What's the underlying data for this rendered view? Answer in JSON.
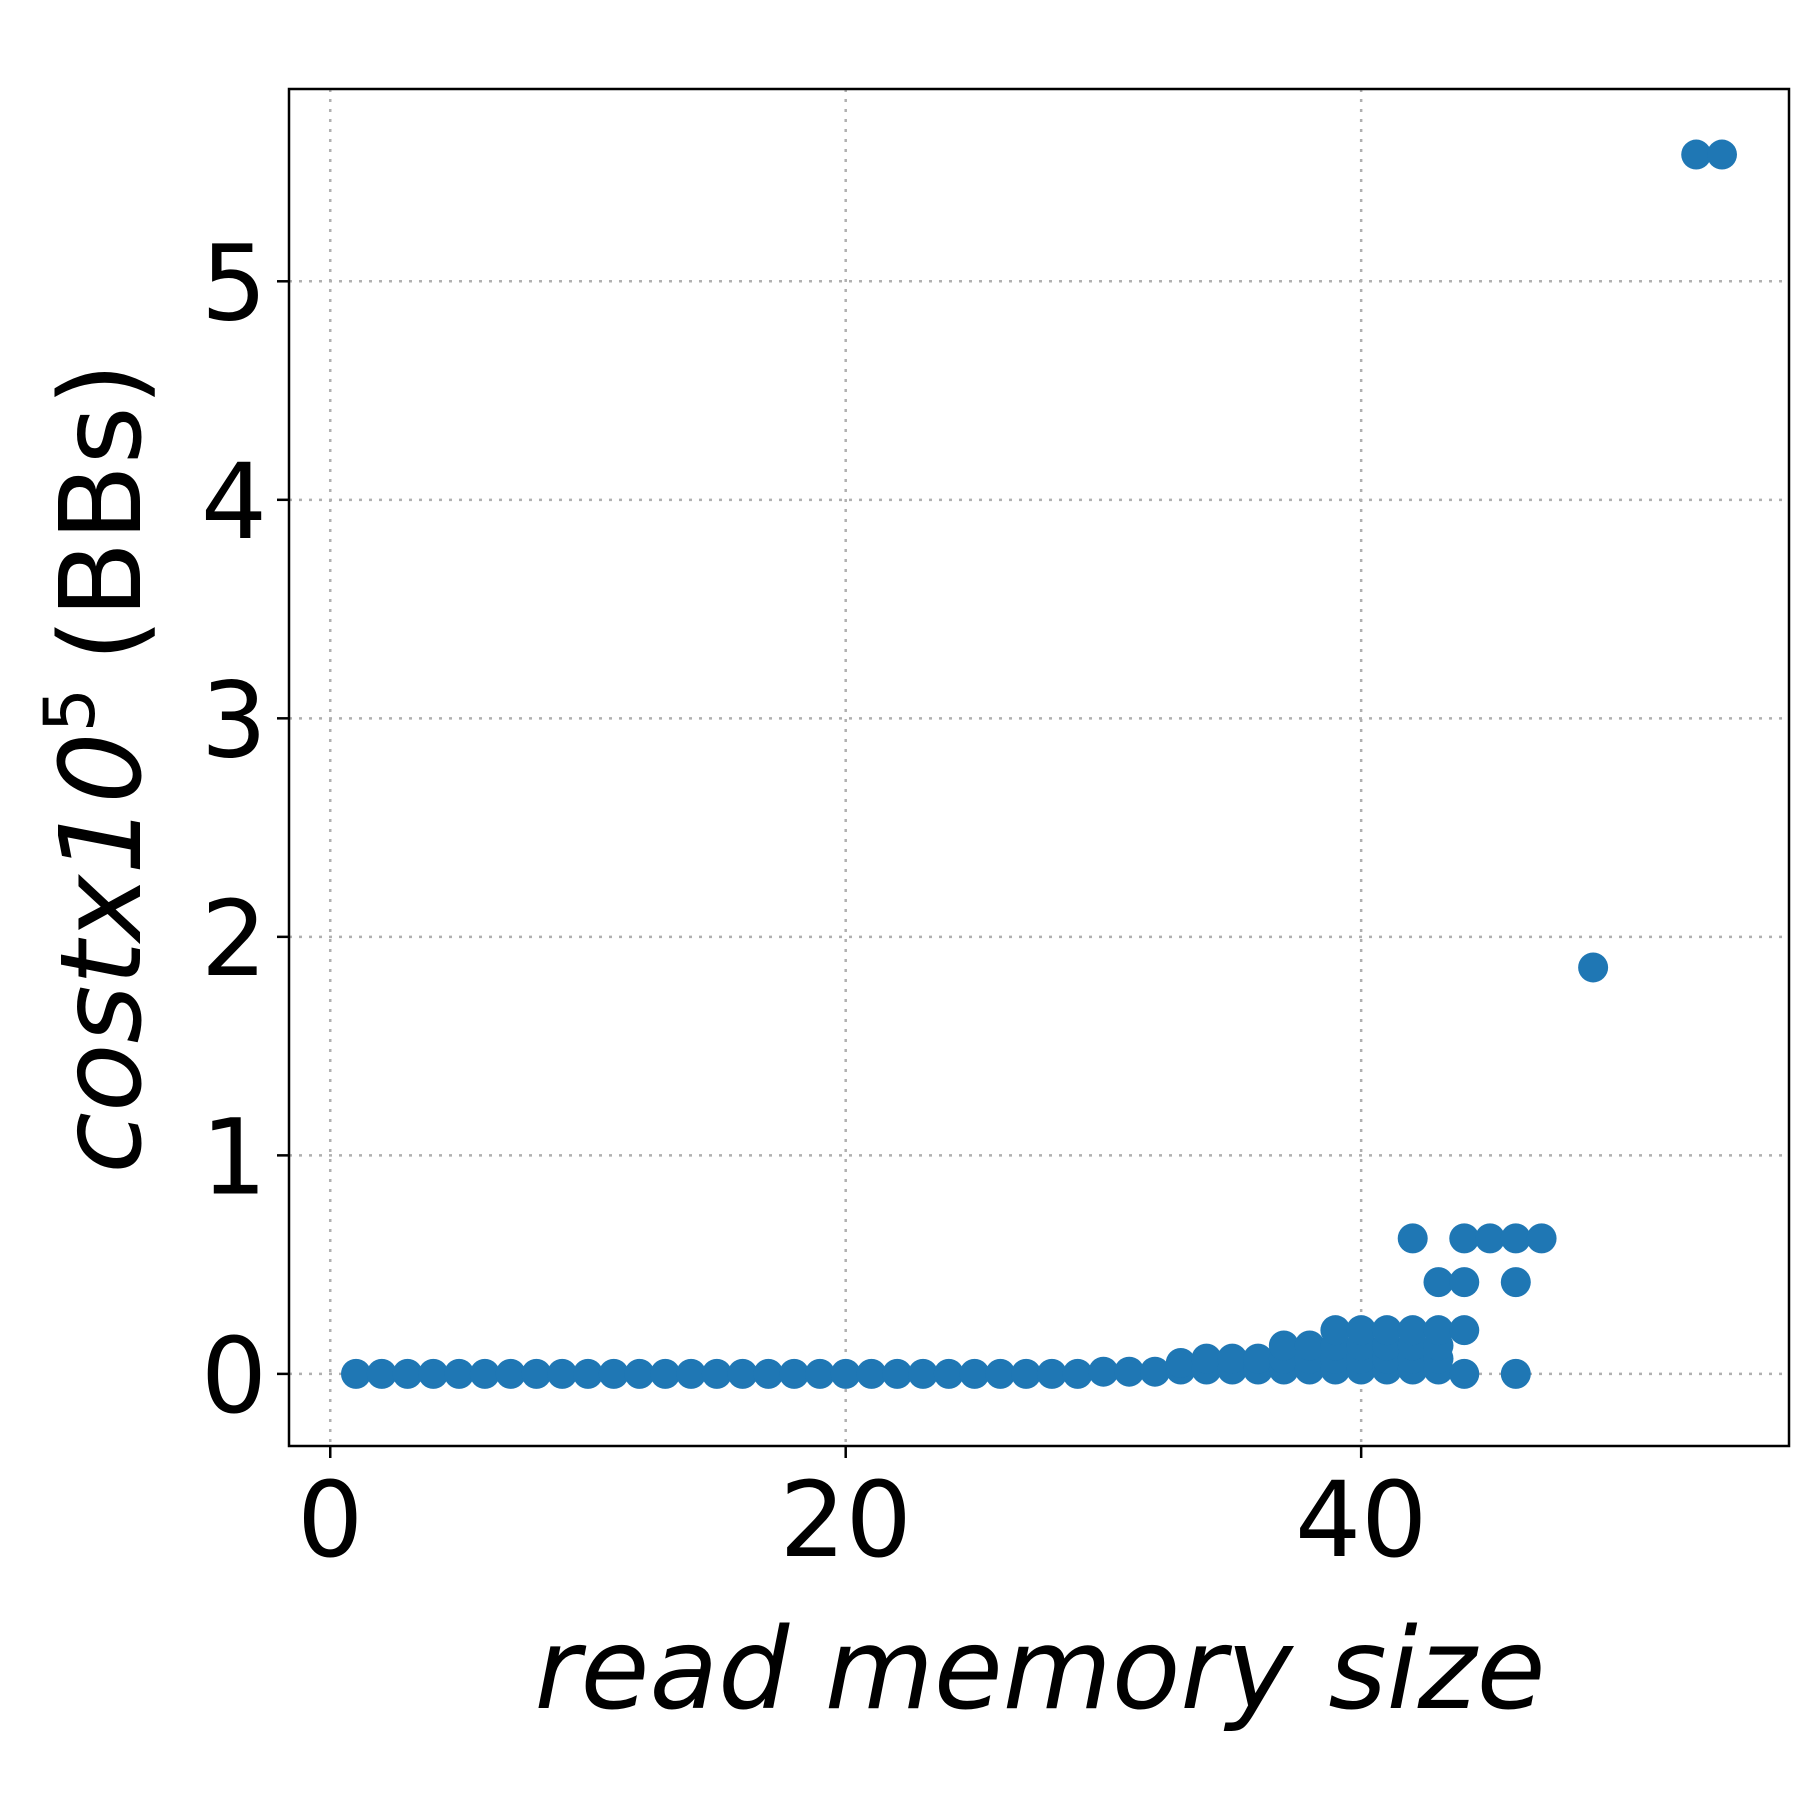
{
  "chart_data": {
    "type": "scatter",
    "title": "",
    "xlabel": "read memory size",
    "ylabel": {
      "math": "costx10",
      "superscript": "5",
      "unit": "(BBs)"
    },
    "xlim": [
      -1.6,
      56.6
    ],
    "ylim": [
      -0.33,
      5.88
    ],
    "x_ticks": [
      "0",
      "20",
      "40"
    ],
    "y_ticks": [
      "0",
      "1",
      "2",
      "3",
      "4",
      "5"
    ],
    "x_tick_values": [
      0,
      20,
      40
    ],
    "y_tick_values": [
      0,
      1,
      2,
      3,
      4,
      5
    ],
    "grid": true,
    "marker_color": "#1f77b4",
    "series": [
      {
        "x": [
          1,
          2,
          3,
          4,
          5,
          6,
          7,
          8,
          9,
          10,
          11,
          12,
          13,
          14,
          15,
          16,
          17,
          18,
          19,
          20,
          21,
          22,
          23,
          24,
          25,
          26,
          27,
          28,
          29,
          30,
          31,
          32,
          33,
          33,
          34,
          34,
          35,
          35,
          36,
          36,
          37,
          37,
          37,
          38,
          38,
          38,
          39,
          39,
          39,
          39,
          40,
          40,
          40,
          40,
          41,
          41,
          41,
          41,
          42,
          42,
          42,
          42,
          42,
          43,
          43,
          43,
          43,
          43,
          44,
          44,
          44,
          44,
          45,
          46,
          46,
          46,
          47,
          49,
          53,
          54
        ],
        "y": [
          0,
          0,
          0,
          0,
          0,
          0,
          0,
          0,
          0,
          0,
          0,
          0,
          0,
          0,
          0,
          0,
          0,
          0,
          0,
          0,
          0,
          0,
          0,
          0,
          0,
          0,
          0,
          0,
          0,
          0.01,
          0.01,
          0.01,
          0.02,
          0.05,
          0.02,
          0.07,
          0.02,
          0.07,
          0.02,
          0.07,
          0.02,
          0.07,
          0.13,
          0.02,
          0.07,
          0.13,
          0.02,
          0.07,
          0.13,
          0.2,
          0.02,
          0.07,
          0.13,
          0.2,
          0.02,
          0.07,
          0.13,
          0.2,
          0.02,
          0.07,
          0.13,
          0.2,
          0.62,
          0.02,
          0.07,
          0.13,
          0.2,
          0.42,
          0,
          0.2,
          0.42,
          0.62,
          0.62,
          0,
          0.42,
          0.62,
          0.62,
          1.86,
          5.58,
          5.58
        ]
      }
    ]
  }
}
